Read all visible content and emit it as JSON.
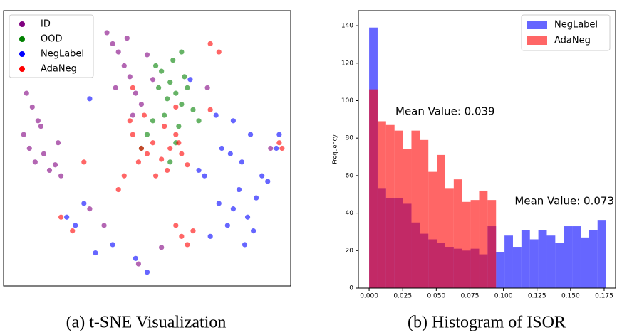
{
  "chart_data": [
    {
      "type": "scatter",
      "caption": "(a) t-SNE Visualization",
      "xlim": [
        0,
        100
      ],
      "ylim": [
        0,
        100
      ],
      "legend": "upper left",
      "series": [
        {
          "name": "ID",
          "color": "#800080",
          "x": [
            8,
            10,
            12,
            7,
            9,
            14,
            11,
            16,
            13,
            18,
            20,
            19,
            36,
            38,
            40,
            42,
            44,
            39,
            46,
            48,
            50,
            43,
            45,
            52,
            30,
            35,
            47,
            55,
            71,
            93
          ],
          "y": [
            70,
            65,
            60,
            55,
            50,
            48,
            45,
            42,
            58,
            44,
            40,
            52,
            92,
            88,
            85,
            80,
            76,
            72,
            70,
            66,
            84,
            90,
            62,
            75,
            28,
            22,
            8,
            14,
            72,
            50
          ]
        },
        {
          "name": "OOD",
          "color": "#008000",
          "x": [
            55,
            58,
            60,
            62,
            56,
            52,
            64,
            59,
            61,
            57,
            50,
            63,
            66,
            54,
            48,
            60,
            68,
            53,
            58,
            62
          ],
          "y": [
            78,
            74,
            70,
            66,
            62,
            60,
            72,
            82,
            58,
            68,
            55,
            76,
            64,
            72,
            50,
            52,
            60,
            80,
            45,
            85
          ]
        },
        {
          "name": "NegLabel",
          "color": "#0000ff",
          "x": [
            75,
            80,
            82,
            78,
            85,
            88,
            72,
            70,
            68,
            76,
            83,
            90,
            92,
            86,
            74,
            30,
            28,
            22,
            25,
            38,
            46,
            50,
            32,
            80,
            87,
            84,
            79,
            95,
            96,
            65
          ],
          "y": [
            30,
            28,
            35,
            22,
            25,
            32,
            18,
            40,
            42,
            50,
            45,
            40,
            38,
            55,
            62,
            68,
            30,
            25,
            22,
            15,
            10,
            5,
            12,
            60,
            20,
            15,
            48,
            50,
            55,
            75
          ]
        },
        {
          "name": "AdaNeg",
          "color": "#ff0000",
          "x": [
            45,
            48,
            50,
            52,
            55,
            58,
            60,
            47,
            53,
            57,
            62,
            44,
            49,
            56,
            60,
            64,
            72,
            45,
            42,
            61,
            62,
            64,
            66,
            60,
            72,
            97,
            96,
            20,
            24,
            28,
            40,
            75
          ],
          "y": [
            55,
            50,
            48,
            52,
            46,
            50,
            55,
            45,
            40,
            42,
            48,
            60,
            62,
            58,
            65,
            44,
            88,
            72,
            40,
            52,
            18,
            15,
            20,
            22,
            64,
            50,
            52,
            25,
            20,
            45,
            35,
            85
          ]
        }
      ]
    },
    {
      "type": "histogram",
      "caption": "(b) Histogram of ISOR",
      "ylabel": "Frequency",
      "legend": "upper right",
      "xlim": [
        -0.008,
        0.1835
      ],
      "ylim": [
        0,
        148
      ],
      "xticks": [
        {
          "value": 0,
          "label": "0.000"
        },
        {
          "value": 0.025,
          "label": "0.025"
        },
        {
          "value": 0.05,
          "label": "0.050"
        },
        {
          "value": 0.075,
          "label": "0.075"
        },
        {
          "value": 0.1,
          "label": "0.100"
        },
        {
          "value": 0.125,
          "label": "0.125"
        },
        {
          "value": 0.15,
          "label": "0.150"
        },
        {
          "value": 0.175,
          "label": "0.175"
        }
      ],
      "yticks": [
        0,
        20,
        40,
        60,
        80,
        100,
        120,
        140
      ],
      "bins": [
        0,
        0.0063,
        0.0126,
        0.0189,
        0.0252,
        0.0315,
        0.0378,
        0.0441,
        0.0504,
        0.0567,
        0.063,
        0.0693,
        0.0756,
        0.0819,
        0.0882,
        0.0945,
        0.1008,
        0.1071,
        0.1134,
        0.1197,
        0.126,
        0.1323,
        0.1386,
        0.1449,
        0.1512,
        0.1575,
        0.1638,
        0.1701,
        0.1764
      ],
      "series": [
        {
          "name": "NegLabel",
          "color": "#0000ff",
          "values": [
            139,
            53,
            48,
            48,
            45,
            35,
            29,
            26,
            24,
            22,
            21,
            20,
            21,
            18,
            33,
            19,
            28,
            22,
            31,
            26,
            31,
            28,
            24,
            33,
            33,
            27,
            31,
            36
          ]
        },
        {
          "name": "AdaNeg",
          "color": "#ff0000",
          "values": [
            106,
            89,
            87,
            84,
            74,
            84,
            79,
            62,
            71,
            53,
            58,
            46,
            47,
            52,
            47,
            0,
            0,
            0,
            0,
            0,
            0,
            0,
            0,
            0,
            0,
            0,
            0,
            0
          ]
        }
      ],
      "annotations": [
        {
          "text": "Mean Value: 0.039",
          "color": "#ff0000"
        },
        {
          "text": "Mean Value: 0.073",
          "color": "#4682b4"
        }
      ]
    }
  ]
}
